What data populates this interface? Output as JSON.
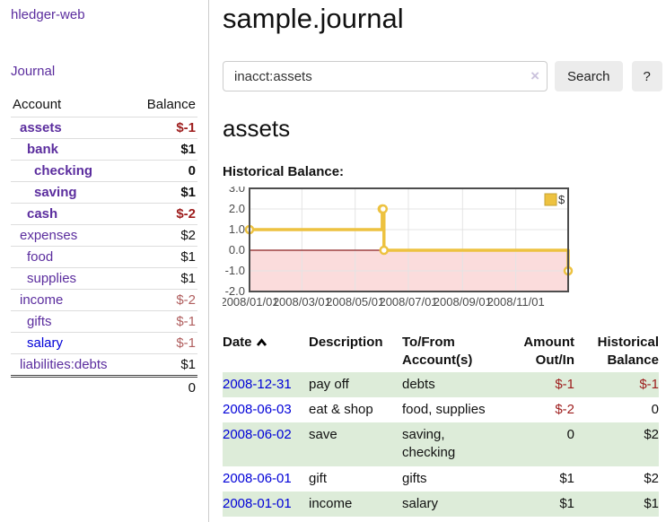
{
  "palette": {
    "purple-link": "#5b2d9e",
    "blue-link": "#0000d8",
    "neg-strong": "#9d1c1c",
    "neg-soft": "#b05e5e",
    "row-green": "#ddecd9",
    "chart-line": "#edc240",
    "chart-fill-neg": "#fbdcdc",
    "zero-line": "#8b1f1f"
  },
  "app": {
    "title": "hledger-web"
  },
  "sidebar": {
    "journal_link": "Journal",
    "table": {
      "header_account": "Account",
      "header_balance": "Balance",
      "rows": [
        {
          "label": "assets",
          "balance": "$-1",
          "depth": 1,
          "bold": true,
          "balance_style": "neg-bold"
        },
        {
          "label": "bank",
          "balance": "$1",
          "depth": 2,
          "bold": true,
          "balance_style": "pos-bold"
        },
        {
          "label": "checking",
          "balance": "0",
          "depth": 3,
          "bold": true,
          "balance_style": "pos-bold"
        },
        {
          "label": "saving",
          "balance": "$1",
          "depth": 3,
          "bold": true,
          "balance_style": "pos-bold"
        },
        {
          "label": "cash",
          "balance": "$-2",
          "depth": 2,
          "bold": true,
          "balance_style": "neg-bold"
        },
        {
          "label": "expenses",
          "balance": "$2",
          "depth": 1,
          "bold": false,
          "balance_style": "plain"
        },
        {
          "label": "food",
          "balance": "$1",
          "depth": 2,
          "bold": false,
          "balance_style": "plain"
        },
        {
          "label": "supplies",
          "balance": "$1",
          "depth": 2,
          "bold": false,
          "balance_style": "plain"
        },
        {
          "label": "income",
          "balance": "$-2",
          "depth": 1,
          "bold": false,
          "balance_style": "neg-soft"
        },
        {
          "label": "gifts",
          "balance": "$-1",
          "depth": 2,
          "bold": false,
          "balance_style": "neg-soft"
        },
        {
          "label": "salary",
          "balance": "$-1",
          "depth": 2,
          "bold": false,
          "balance_style": "neg-soft",
          "link_blue": true
        },
        {
          "label": "liabilities:debts",
          "balance": "$1",
          "depth": 1,
          "bold": false,
          "balance_style": "plain"
        }
      ],
      "total": "0"
    }
  },
  "main": {
    "title": "sample.journal",
    "search": {
      "value": "inacct:assets",
      "clear_icon": "×",
      "button_label": "Search",
      "help_label": "?"
    },
    "account_heading": "assets",
    "chart_label": "Historical Balance:"
  },
  "chart_data": {
    "type": "line",
    "title": "Historical Balance",
    "step": "after",
    "series": [
      {
        "name": "$",
        "points": [
          [
            "2008-01-01",
            1
          ],
          [
            "2008-06-01",
            2
          ],
          [
            "2008-06-02",
            2
          ],
          [
            "2008-06-03",
            0
          ],
          [
            "2008-12-31",
            -1
          ]
        ]
      }
    ],
    "xlim": [
      "2008-01-01",
      "2008-12-31"
    ],
    "ylim": [
      -2,
      3
    ],
    "x_ticks": [
      "2008/01/01",
      "2008/03/01",
      "2008/05/01",
      "2008/07/01",
      "2008/09/01",
      "2008/11/01"
    ],
    "y_ticks": [
      "3.0",
      "2.0",
      "1.0",
      "0.0",
      "-1.0",
      "-2.0"
    ],
    "legend": {
      "label": "$",
      "position": "top-right"
    },
    "grid": true,
    "negative_region_shaded": true
  },
  "register": {
    "headers": {
      "date": "Date",
      "description": "Description",
      "accounts": "To/From Account(s)",
      "amount": "Amount Out/In",
      "balance": "Historical Balance"
    },
    "rows": [
      {
        "date": "2008-12-31",
        "description": "pay off",
        "accounts": "debts",
        "amount": "$-1",
        "amount_neg": true,
        "balance": "$-1",
        "balance_neg": true,
        "shaded": true
      },
      {
        "date": "2008-06-03",
        "description": "eat & shop",
        "accounts": "food, supplies",
        "amount": "$-2",
        "amount_neg": true,
        "balance": "0",
        "balance_neg": false,
        "shaded": false
      },
      {
        "date": "2008-06-02",
        "description": "save",
        "accounts": "saving, checking",
        "amount": "0",
        "amount_neg": false,
        "balance": "$2",
        "balance_neg": false,
        "shaded": true
      },
      {
        "date": "2008-06-01",
        "description": "gift",
        "accounts": "gifts",
        "amount": "$1",
        "amount_neg": false,
        "balance": "$2",
        "balance_neg": false,
        "shaded": false
      },
      {
        "date": "2008-01-01",
        "description": "income",
        "accounts": "salary",
        "amount": "$1",
        "amount_neg": false,
        "balance": "$1",
        "balance_neg": false,
        "shaded": true
      }
    ]
  }
}
